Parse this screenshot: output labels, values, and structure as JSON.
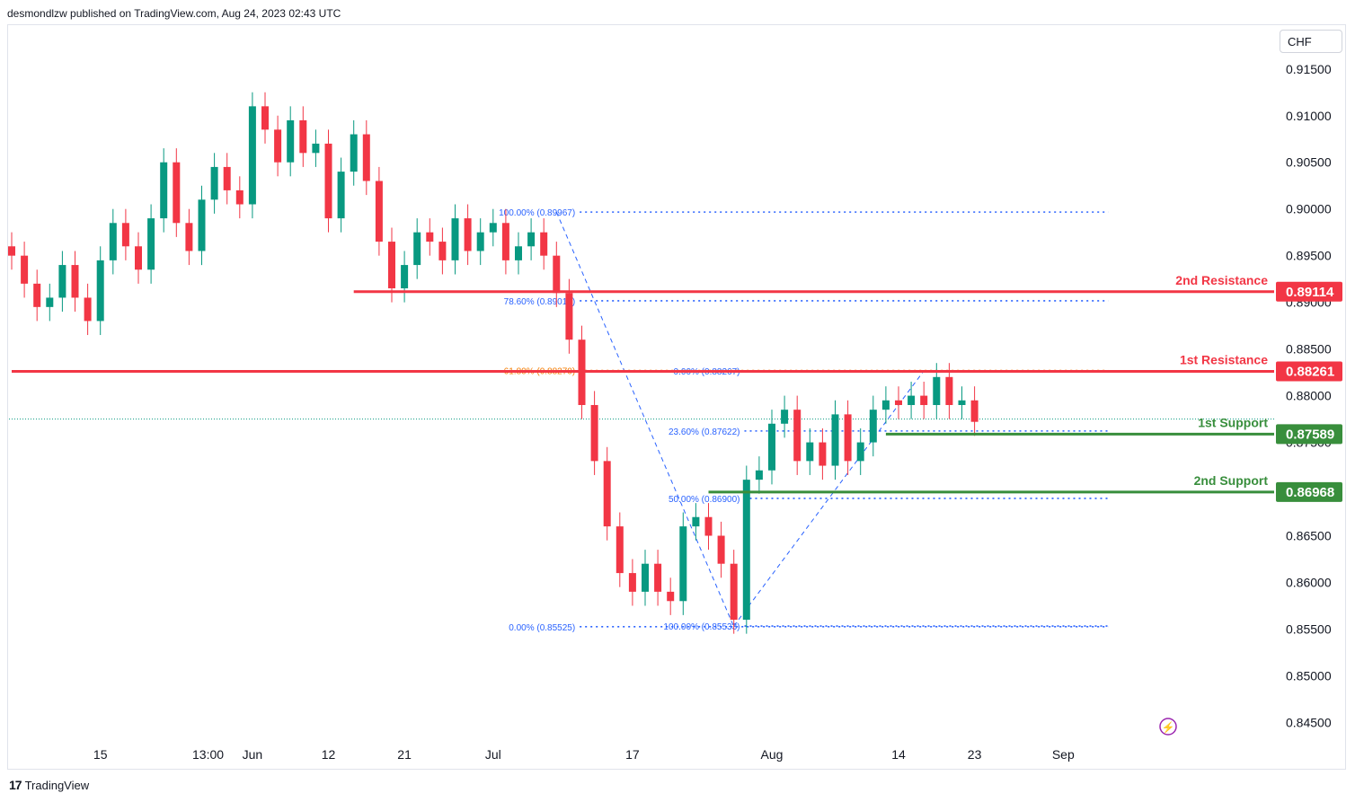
{
  "header": {
    "publisher": "desmondlzw published on TradingView.com, Aug 24, 2023 02:43 UTC"
  },
  "currency_button": {
    "label": "CHF"
  },
  "footer": {
    "brand": "TradingView",
    "logo_glyph": "17"
  },
  "colors": {
    "up": "#089981",
    "down": "#f23645",
    "resistance": "#f23645",
    "support": "#388e3c",
    "fib_blue": "#2962ff",
    "fib_orange": "#f57c00"
  },
  "chart_data": {
    "type": "candlestick",
    "symbol_currency": "CHF",
    "ylim": [
      0.8435,
      0.9195
    ],
    "y_ticks": [
      "0.91500",
      "0.91000",
      "0.90500",
      "0.90000",
      "0.89500",
      "0.89000",
      "0.88500",
      "0.88000",
      "0.87500",
      "0.87000",
      "0.86500",
      "0.86000",
      "0.85500",
      "0.85000",
      "0.84500"
    ],
    "x_ticks": [
      {
        "label": "15",
        "bar": 7
      },
      {
        "label": "13:00",
        "bar": 15.5
      },
      {
        "label": "Jun",
        "bar": 19
      },
      {
        "label": "12",
        "bar": 25
      },
      {
        "label": "21",
        "bar": 31
      },
      {
        "label": "Jul",
        "bar": 38
      },
      {
        "label": "17",
        "bar": 49
      },
      {
        "label": "Aug",
        "bar": 60
      },
      {
        "label": "14",
        "bar": 70
      },
      {
        "label": "23",
        "bar": 76
      },
      {
        "label": "Sep",
        "bar": 83
      }
    ],
    "levels": [
      {
        "name": "2nd Resistance",
        "value": "0.89114",
        "kind": "resistance",
        "bar_start": 27
      },
      {
        "name": "1st Resistance",
        "value": "0.88261",
        "kind": "resistance",
        "bar_start": 0
      },
      {
        "name": "1st Support",
        "value": "0.87589",
        "kind": "support",
        "bar_start": 69
      },
      {
        "name": "2nd Support",
        "value": "0.86968",
        "kind": "support",
        "bar_start": 55
      }
    ],
    "current_price": 0.8775,
    "fib_left": {
      "from_bar": 43,
      "to_bar": 57,
      "label_bar": 42,
      "levels": [
        {
          "label": "100.00% (0.89967)",
          "value": 0.89967,
          "color": "blue"
        },
        {
          "label": "78.60% (0.89016)",
          "value": 0.89016,
          "color": "blue"
        },
        {
          "label": "61.80% (0.88270)",
          "value": 0.8827,
          "color": "orange"
        },
        {
          "label": "0.00% (0.85525)",
          "value": 0.85525,
          "color": "blue"
        }
      ],
      "line_end_bar": 83
    },
    "fib_right": {
      "from_bar": 57,
      "to_bar": 72,
      "label_bar": 55,
      "levels": [
        {
          "label": "0.00% (0.88267)",
          "value": 0.88267,
          "color": "blue"
        },
        {
          "label": "23.60% (0.87622)",
          "value": 0.87622,
          "color": "blue"
        },
        {
          "label": "50.00% (0.86900)",
          "value": 0.869,
          "color": "blue"
        },
        {
          "label": "100.00% (0.85533)",
          "value": 0.85533,
          "color": "blue"
        }
      ],
      "line_end_bar": 83
    },
    "closes": [
      0.895,
      0.892,
      0.8895,
      0.8905,
      0.894,
      0.8905,
      0.888,
      0.8945,
      0.8985,
      0.896,
      0.8935,
      0.899,
      0.905,
      0.8985,
      0.8955,
      0.901,
      0.9045,
      0.902,
      0.9005,
      0.911,
      0.9085,
      0.905,
      0.9095,
      0.906,
      0.907,
      0.899,
      0.904,
      0.908,
      0.903,
      0.8965,
      0.8915,
      0.894,
      0.8975,
      0.8965,
      0.8945,
      0.899,
      0.8955,
      0.8975,
      0.8985,
      0.8945,
      0.896,
      0.8975,
      0.895,
      0.891,
      0.886,
      0.879,
      0.873,
      0.866,
      0.861,
      0.859,
      0.862,
      0.859,
      0.858,
      0.866,
      0.867,
      0.865,
      0.862,
      0.856,
      0.871,
      0.872,
      0.877,
      0.8785,
      0.873,
      0.875,
      0.8725,
      0.878,
      0.873,
      0.875,
      0.8785,
      0.8795,
      0.879,
      0.88,
      0.879,
      0.882,
      0.879,
      0.8795,
      0.8772
    ]
  }
}
